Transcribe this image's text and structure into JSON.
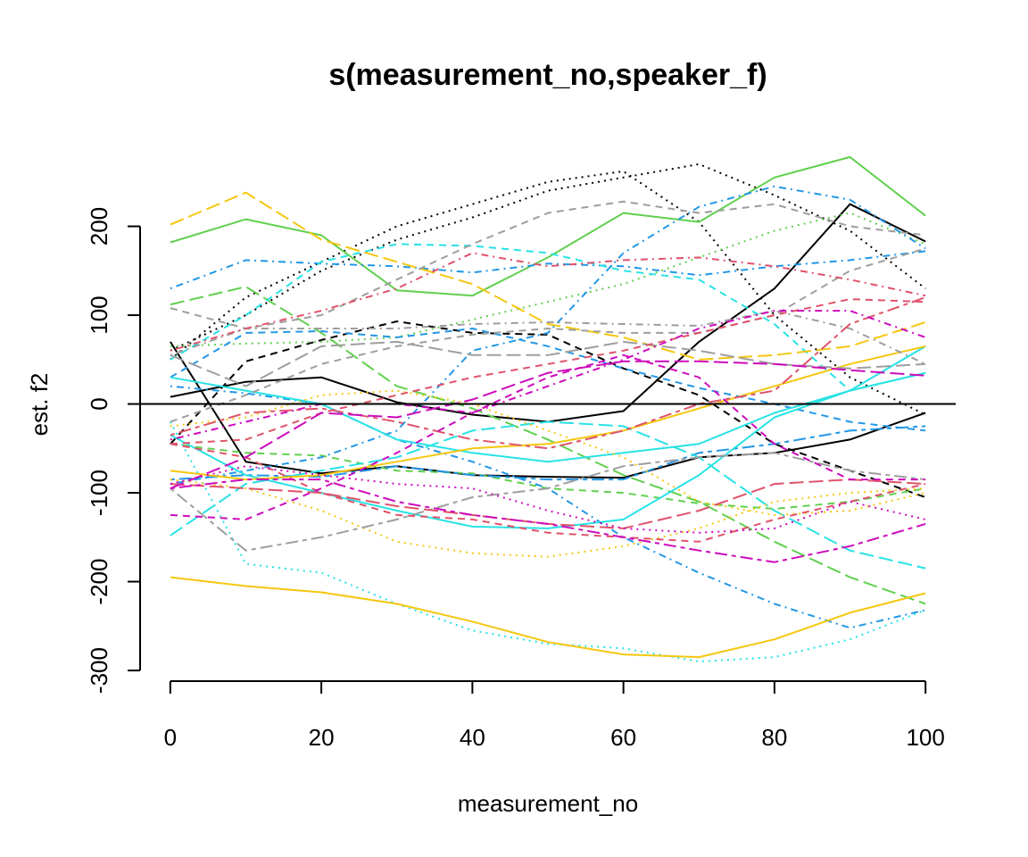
{
  "chart_data": {
    "type": "line",
    "title": "s(measurement_no,speaker_f)",
    "xlabel": "measurement_no",
    "ylabel": "est. f2",
    "xlim": [
      -4,
      104
    ],
    "ylim": [
      -312,
      292
    ],
    "xticks": [
      0,
      20,
      40,
      60,
      80,
      100
    ],
    "yticks": [
      -300,
      -200,
      -100,
      0,
      100,
      200
    ],
    "hline": 0,
    "x": [
      0,
      10,
      20,
      30,
      40,
      50,
      60,
      70,
      80,
      90,
      100
    ],
    "series": [
      {
        "color": "#000000",
        "dash": "solid",
        "values": [
          8,
          25,
          30,
          2,
          -12,
          -20,
          -8,
          70,
          130,
          225,
          183
        ]
      },
      {
        "color": "#000000",
        "dash": "solid",
        "values": [
          70,
          -65,
          -78,
          -70,
          -80,
          -82,
          -83,
          -60,
          -55,
          -40,
          -10
        ]
      },
      {
        "color": "#000000",
        "dash": "dashed",
        "values": [
          -45,
          48,
          72,
          93,
          80,
          78,
          40,
          10,
          -45,
          -75,
          -105
        ]
      },
      {
        "color": "#000000",
        "dash": "dotted",
        "values": [
          50,
          120,
          160,
          200,
          225,
          250,
          262,
          205,
          100,
          30,
          -12
        ]
      },
      {
        "color": "#000000",
        "dash": "dotted",
        "values": [
          60,
          100,
          150,
          185,
          210,
          240,
          255,
          270,
          235,
          195,
          130
        ]
      },
      {
        "color": "#61D04F",
        "dash": "solid",
        "values": [
          182,
          208,
          190,
          128,
          122,
          165,
          215,
          205,
          255,
          278,
          212
        ]
      },
      {
        "color": "#61D04F",
        "dash": "longdash",
        "values": [
          112,
          132,
          80,
          20,
          -5,
          -40,
          -80,
          -110,
          -155,
          -195,
          -225
        ]
      },
      {
        "color": "#61D04F",
        "dash": "dotted",
        "values": [
          65,
          68,
          70,
          75,
          95,
          115,
          135,
          165,
          195,
          215,
          180
        ]
      },
      {
        "color": "#61D04F",
        "dash": "dashed",
        "values": [
          -45,
          -55,
          -58,
          -75,
          -78,
          -95,
          -100,
          -112,
          -118,
          -110,
          -95
        ]
      },
      {
        "color": "#2297E6",
        "dash": "dotdash",
        "values": [
          130,
          162,
          158,
          155,
          148,
          158,
          155,
          145,
          155,
          162,
          172
        ]
      },
      {
        "color": "#2297E6",
        "dash": "dashed",
        "values": [
          30,
          80,
          82,
          75,
          85,
          65,
          40,
          18,
          0,
          -20,
          -30
        ]
      },
      {
        "color": "#2297E6",
        "dash": "dotdash",
        "values": [
          -90,
          -75,
          -60,
          -30,
          60,
          80,
          170,
          222,
          245,
          230,
          175
        ]
      },
      {
        "color": "#2297E6",
        "dash": "dotdash",
        "values": [
          20,
          12,
          0,
          -40,
          -65,
          -95,
          -150,
          -190,
          -225,
          -252,
          -232
        ]
      },
      {
        "color": "#2297E6",
        "dash": "twodash",
        "values": [
          -85,
          -80,
          -82,
          -70,
          -80,
          -85,
          -85,
          -55,
          -45,
          -30,
          -25
        ]
      },
      {
        "color": "#28E2E5",
        "dash": "longdash",
        "values": [
          -148,
          -90,
          -75,
          -60,
          -30,
          -20,
          -25,
          -60,
          -120,
          -165,
          -185
        ]
      },
      {
        "color": "#28E2E5",
        "dash": "dashed",
        "values": [
          50,
          100,
          160,
          180,
          178,
          170,
          150,
          140,
          90,
          15,
          35
        ]
      },
      {
        "color": "#28E2E5",
        "dash": "solid",
        "values": [
          -35,
          -80,
          -100,
          -120,
          -138,
          -140,
          -130,
          -80,
          -15,
          15,
          65
        ]
      },
      {
        "color": "#28E2E5",
        "dash": "dotted",
        "values": [
          -20,
          -180,
          -190,
          -225,
          -255,
          -270,
          -275,
          -290,
          -285,
          -265,
          -232
        ]
      },
      {
        "color": "#28E2E5",
        "dash": "solid",
        "values": [
          30,
          15,
          0,
          -40,
          -55,
          -65,
          -55,
          -45,
          -10,
          15,
          35
        ]
      },
      {
        "color": "#F5C710",
        "dash": "solid",
        "values": [
          -195,
          -205,
          -212,
          -225,
          -245,
          -268,
          -282,
          -285,
          -265,
          -235,
          -213
        ]
      },
      {
        "color": "#F5C710",
        "dash": "longdash",
        "values": [
          202,
          238,
          185,
          160,
          135,
          90,
          75,
          50,
          55,
          65,
          92
        ]
      },
      {
        "color": "#F5C710",
        "dash": "solid",
        "values": [
          -75,
          -85,
          -80,
          -65,
          -50,
          -45,
          -30,
          -5,
          20,
          45,
          65
        ]
      },
      {
        "color": "#F5C710",
        "dash": "dotted",
        "values": [
          -85,
          -95,
          -120,
          -155,
          -168,
          -172,
          -160,
          -140,
          -110,
          -100,
          -95
        ]
      },
      {
        "color": "#F5C710",
        "dash": "dotted",
        "values": [
          -25,
          -15,
          10,
          15,
          0,
          -30,
          -60,
          -110,
          -125,
          -120,
          -100
        ]
      },
      {
        "color": "#9E9E9E",
        "dash": "dashed",
        "values": [
          108,
          85,
          100,
          140,
          180,
          215,
          228,
          215,
          225,
          200,
          190
        ]
      },
      {
        "color": "#9E9E9E",
        "dash": "twodash",
        "values": [
          -95,
          -165,
          -150,
          -130,
          -105,
          -95,
          -70,
          -60,
          -55,
          -75,
          -85
        ]
      },
      {
        "color": "#9E9E9E",
        "dash": "dotdash",
        "values": [
          55,
          85,
          85,
          85,
          90,
          92,
          90,
          88,
          105,
          85,
          45
        ]
      },
      {
        "color": "#9E9E9E",
        "dash": "longdash",
        "values": [
          55,
          20,
          65,
          70,
          55,
          55,
          70,
          60,
          45,
          40,
          45
        ]
      },
      {
        "color": "#9E9E9E",
        "dash": "dashed",
        "values": [
          -20,
          10,
          45,
          65,
          78,
          85,
          80,
          80,
          100,
          150,
          175
        ]
      },
      {
        "color": "#DF536B",
        "dash": "dotdash",
        "values": [
          60,
          85,
          105,
          130,
          170,
          155,
          162,
          165,
          155,
          140,
          122
        ]
      },
      {
        "color": "#DF536B",
        "dash": "dashed",
        "values": [
          -45,
          -40,
          -10,
          10,
          30,
          45,
          60,
          80,
          100,
          118,
          115
        ]
      },
      {
        "color": "#DF536B",
        "dash": "longdash",
        "values": [
          -90,
          -95,
          -100,
          -115,
          -125,
          -135,
          -140,
          -120,
          -90,
          -85,
          -90
        ]
      },
      {
        "color": "#DF536B",
        "dash": "dashed",
        "values": [
          -45,
          -60,
          -100,
          -125,
          -130,
          -145,
          -150,
          -155,
          -130,
          -110,
          -90
        ]
      },
      {
        "color": "#DF536B",
        "dash": "twodash",
        "values": [
          -35,
          -10,
          -5,
          -20,
          -40,
          -50,
          -30,
          0,
          15,
          90,
          120
        ]
      },
      {
        "color": "#CD0BBC",
        "dash": "dashed",
        "values": [
          -125,
          -130,
          -95,
          -55,
          -10,
          30,
          55,
          30,
          -45,
          -85,
          -85
        ]
      },
      {
        "color": "#CD0BBC",
        "dash": "dotdash",
        "values": [
          -40,
          -20,
          0,
          0,
          -10,
          20,
          50,
          85,
          105,
          105,
          75
        ]
      },
      {
        "color": "#CD0BBC",
        "dash": "longdash",
        "values": [
          -95,
          -60,
          -10,
          -15,
          5,
          35,
          48,
          48,
          45,
          38,
          32
        ]
      },
      {
        "color": "#CD0BBC",
        "dash": "twodash",
        "values": [
          -95,
          -85,
          -85,
          -110,
          -125,
          -135,
          -150,
          -165,
          -178,
          -160,
          -135
        ]
      },
      {
        "color": "#CD0BBC",
        "dash": "dotted",
        "values": [
          -90,
          -70,
          -80,
          -90,
          -95,
          -120,
          -140,
          -145,
          -140,
          -110,
          -130
        ]
      }
    ]
  }
}
